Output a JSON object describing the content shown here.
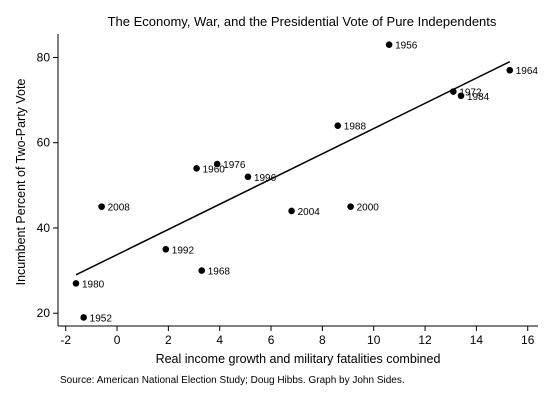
{
  "chart_data": {
    "type": "scatter",
    "title": "The Economy, War, and the Presidential Vote of Pure Independents",
    "xlabel": "Real income growth and military fatalities combined",
    "ylabel": "Incumbent Percent of Two-Party Vote",
    "source": "Source: American National Election Study; Doug Hibbs. Graph by John Sides.",
    "xlim": [
      -2.3,
      16.4
    ],
    "ylim": [
      17,
      85.5
    ],
    "xticks": [
      -2,
      0,
      2,
      4,
      6,
      8,
      10,
      12,
      14,
      16
    ],
    "yticks": [
      20,
      40,
      60,
      80
    ],
    "grid": false,
    "points": [
      {
        "label": "1956",
        "x": 10.6,
        "y": 83
      },
      {
        "label": "1964",
        "x": 15.3,
        "y": 77
      },
      {
        "label": "1972",
        "x": 13.1,
        "y": 72
      },
      {
        "label": "1984",
        "x": 13.4,
        "y": 71
      },
      {
        "label": "1988",
        "x": 8.6,
        "y": 64
      },
      {
        "label": "1976",
        "x": 3.9,
        "y": 55
      },
      {
        "label": "1960",
        "x": 3.1,
        "y": 54
      },
      {
        "label": "1996",
        "x": 5.1,
        "y": 52
      },
      {
        "label": "2008",
        "x": -0.6,
        "y": 45
      },
      {
        "label": "2000",
        "x": 9.1,
        "y": 45
      },
      {
        "label": "2004",
        "x": 6.8,
        "y": 44
      },
      {
        "label": "1992",
        "x": 1.9,
        "y": 35
      },
      {
        "label": "1968",
        "x": 3.3,
        "y": 30
      },
      {
        "label": "1980",
        "x": -1.6,
        "y": 27
      },
      {
        "label": "1952",
        "x": -1.3,
        "y": 19
      }
    ],
    "fit_line": {
      "x": [
        -1.6,
        15.3
      ],
      "y": [
        29,
        79
      ]
    }
  }
}
